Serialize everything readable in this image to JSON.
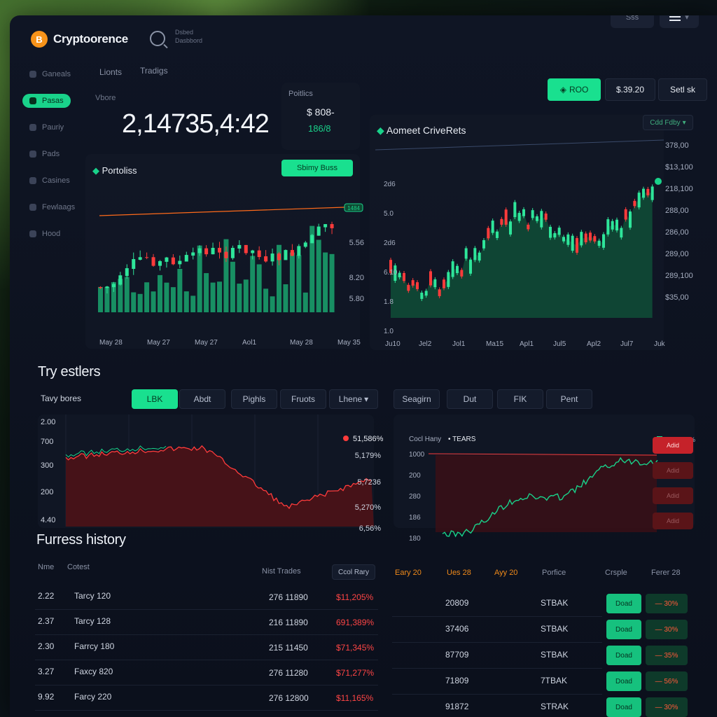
{
  "app": {
    "name": "Cryptoorence",
    "logo_letter": "B",
    "search_hint": "Dsbed Dasbbord"
  },
  "topbar": {
    "small_btn": "Sss"
  },
  "sidebar": {
    "items": [
      {
        "label": "Ganeals",
        "active": false
      },
      {
        "label": "Pasas",
        "active": true
      },
      {
        "label": "Pauriy",
        "active": false
      },
      {
        "label": "Pads",
        "active": false
      },
      {
        "label": "Casines",
        "active": false
      },
      {
        "label": "Fewlaags",
        "active": false
      },
      {
        "label": "Hood",
        "active": false
      }
    ]
  },
  "tabs": [
    "Lionts",
    "Tradigs"
  ],
  "summary": {
    "label": "Vbore",
    "value": "2,14735,4:42"
  },
  "portfolio_card": {
    "title": "Poitlics",
    "price": "$ 808-",
    "change": "186/8"
  },
  "action_buttons": {
    "primary": "ROO",
    "price": "$.39.20",
    "sell": "Setl sk"
  },
  "portfolio_chart": {
    "title": "Portoliss",
    "button": "Sbimy Buss",
    "marker": "1484",
    "y_labels": [
      "5.56",
      "8.20",
      "5.80"
    ],
    "x_labels": [
      "May 28",
      "May 27",
      "May 27",
      "Aol1",
      "May 28",
      "May 35"
    ]
  },
  "market_chart": {
    "title": "Aomeet CriveRets",
    "dropdown": "Cdd Fdby",
    "y_left": [
      "2d6",
      "5.0",
      "2d6",
      "6.10",
      "1.8",
      "1.0"
    ],
    "y_right": [
      "378,00",
      "$13,100",
      "218,100",
      "288,00",
      "286,00",
      "289,00",
      "289,100",
      "$35,00"
    ],
    "x_labels": [
      "Ju10",
      "Jel2",
      "Jol1",
      "Ma15",
      "Apl1",
      "Jul5",
      "Apl2",
      "Jul7",
      "Juk"
    ]
  },
  "strategies": {
    "title": "Try estlers",
    "label": "Tavy bores",
    "buttons": [
      "LBK",
      "Abdt",
      "Pighls",
      "Fruots",
      "Lhene"
    ],
    "right_buttons": [
      "Seagirn",
      "Dut",
      "FIK",
      "Pent"
    ],
    "left_chart": {
      "y_labels": [
        "2.00",
        "700",
        "300",
        "200",
        "4.40"
      ],
      "legend": "51,586%",
      "values": [
        "5,179%",
        "5,7236",
        "5,270%",
        "6,56%"
      ]
    },
    "right_chart": {
      "legend_left": "Cocl Hany",
      "legend_mid": "TEARS",
      "legend_right": "Pasts 88%",
      "y_labels": [
        "1000",
        "200",
        "280",
        "186",
        "180"
      ],
      "side_buttons": [
        "Adid",
        "Adid",
        "Adid",
        "Adid"
      ]
    }
  },
  "history": {
    "title": "Furress history",
    "headers": [
      "Nme",
      "Cotest",
      "Nist Trades",
      "Ccol Rary"
    ],
    "rows": [
      {
        "a": "2.22",
        "b": "Tarcy 120",
        "c": "276 11890",
        "d": "$11,205%",
        "color": "#ff4545"
      },
      {
        "a": "2.37",
        "b": "Tarcy 128",
        "c": "216 11890",
        "d": "691,389%",
        "color": "#ff4545"
      },
      {
        "a": "2.30",
        "b": "Farrcy 180",
        "c": "215 11450",
        "d": "$71,345%",
        "color": "#ff4545"
      },
      {
        "a": "3.27",
        "b": "Faxcy 820",
        "c": "276 11280",
        "d": "$71,277%",
        "color": "#ff4545"
      },
      {
        "a": "9.92",
        "b": "Farcy 220",
        "c": "276 12800",
        "d": "$11,165%",
        "color": "#ff4545"
      }
    ],
    "right_headers": [
      "Eary 20",
      "Ues 28",
      "Ayy 20",
      "Porfice",
      "Crsple",
      "Ferer 28"
    ],
    "right_rows": [
      {
        "v": "20809",
        "t": "STBAK",
        "btn": "Doad",
        "pct": "30%"
      },
      {
        "v": "37406",
        "t": "STBAK",
        "btn": "Doad",
        "pct": "30%"
      },
      {
        "v": "87709",
        "t": "STBAK",
        "btn": "Doad",
        "pct": "35%"
      },
      {
        "v": "71809",
        "t": "7TBAK",
        "btn": "Doad",
        "pct": "56%"
      },
      {
        "v": "91872",
        "t": "STRAK",
        "btn": "Doad",
        "pct": "30%"
      }
    ]
  },
  "colors": {
    "accent": "#19e08f",
    "up": "#19d28a",
    "down": "#ff3b3b",
    "bg": "#0b101c"
  }
}
